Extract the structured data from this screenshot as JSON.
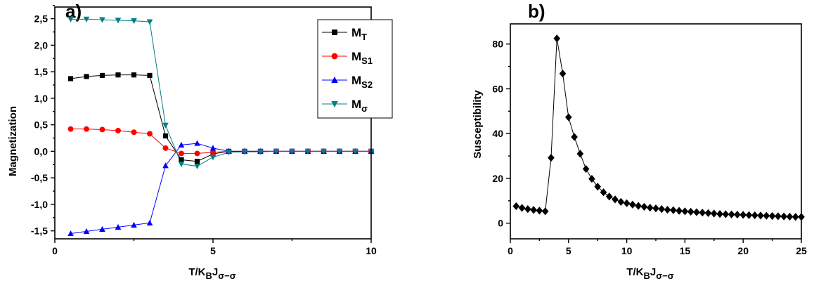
{
  "chart_data": [
    {
      "panel_label": "a)",
      "type": "line",
      "xlabel": {
        "main": "T/K",
        "sub1": "B",
        "mid": "J",
        "sub2": "σ−σ"
      },
      "ylabel": "Magnetization",
      "xlim": [
        0,
        10
      ],
      "ylim": [
        -1.65,
        2.72
      ],
      "x_ticks": [
        "0",
        "5",
        "10"
      ],
      "y_ticks": [
        "-1,5",
        "-1,0",
        "-0,5",
        "0,0",
        "0,5",
        "1,0",
        "1,5",
        "2,0",
        "2,5"
      ],
      "y_tick_values": [
        -1.5,
        -1.0,
        -0.5,
        0.0,
        0.5,
        1.0,
        1.5,
        2.0,
        2.5
      ],
      "legend_position": "top-right",
      "x": [
        0.5,
        1.0,
        1.5,
        2.0,
        2.5,
        3.0,
        3.5,
        4.0,
        4.5,
        5.0,
        5.5,
        6.0,
        6.5,
        7.0,
        7.5,
        8.0,
        8.5,
        9.0,
        9.5,
        10.0
      ],
      "series": [
        {
          "name": "M",
          "sub": "T",
          "color": "#000000",
          "marker": "square",
          "values": [
            1.37,
            1.41,
            1.43,
            1.44,
            1.44,
            1.43,
            0.29,
            -0.16,
            -0.19,
            -0.05,
            0.0,
            0.0,
            0.0,
            0.0,
            0.0,
            0.0,
            0.0,
            0.0,
            0.0,
            0.0
          ]
        },
        {
          "name": "M",
          "sub": "S1",
          "color": "#ff0000",
          "marker": "circle",
          "values": [
            0.42,
            0.42,
            0.41,
            0.39,
            0.36,
            0.33,
            0.06,
            -0.04,
            -0.04,
            -0.02,
            0.0,
            0.0,
            0.0,
            0.0,
            0.0,
            0.0,
            0.0,
            0.0,
            0.0,
            0.0
          ]
        },
        {
          "name": "M",
          "sub": "S2",
          "color": "#0000ff",
          "marker": "triangle-up",
          "values": [
            -1.55,
            -1.51,
            -1.47,
            -1.43,
            -1.39,
            -1.35,
            -0.27,
            0.12,
            0.15,
            0.06,
            0.0,
            0.0,
            0.0,
            0.0,
            0.0,
            0.0,
            0.0,
            0.0,
            0.0,
            0.0
          ]
        },
        {
          "name": "M",
          "sub": "σ",
          "color": "#008080",
          "marker": "triangle-down",
          "values": [
            2.49,
            2.49,
            2.48,
            2.47,
            2.46,
            2.44,
            0.49,
            -0.24,
            -0.28,
            -0.11,
            -0.02,
            -0.01,
            -0.01,
            0.0,
            0.0,
            0.0,
            0.0,
            0.0,
            0.0,
            0.0
          ]
        }
      ]
    },
    {
      "panel_label": "b)",
      "type": "line",
      "xlabel": {
        "main": "T/K",
        "sub1": "B",
        "mid": "J",
        "sub2": "σ−σ"
      },
      "ylabel": "Susceptibility",
      "xlim": [
        0,
        25
      ],
      "ylim": [
        -7,
        89
      ],
      "x_ticks": [
        "0",
        "5",
        "10",
        "15",
        "20",
        "25"
      ],
      "x_tick_values": [
        0,
        5,
        10,
        15,
        20,
        25
      ],
      "y_ticks": [
        "0",
        "20",
        "40",
        "60",
        "80"
      ],
      "y_tick_values": [
        0,
        20,
        40,
        60,
        80
      ],
      "series": [
        {
          "name": "",
          "color": "#000000",
          "marker": "diamond",
          "x": [
            0.5,
            1.0,
            1.5,
            2.0,
            2.5,
            3.0,
            3.5,
            4.0,
            4.5,
            5.0,
            5.5,
            6.0,
            6.5,
            7.0,
            7.5,
            8.0,
            8.5,
            9.0,
            9.5,
            10.0,
            10.5,
            11.0,
            11.5,
            12.0,
            12.5,
            13.0,
            13.5,
            14.0,
            14.5,
            15.0,
            15.5,
            16.0,
            16.5,
            17.0,
            17.5,
            18.0,
            18.5,
            19.0,
            19.5,
            20.0,
            20.5,
            21.0,
            21.5,
            22.0,
            22.5,
            23.0,
            23.5,
            24.0,
            24.5,
            25.0
          ],
          "values": [
            7.6,
            6.8,
            6.3,
            5.9,
            5.6,
            5.3,
            29.2,
            82.5,
            66.8,
            47.3,
            38.5,
            31.0,
            24.2,
            19.8,
            16.3,
            13.8,
            11.9,
            10.6,
            9.5,
            8.9,
            8.3,
            7.7,
            7.3,
            6.9,
            6.6,
            6.3,
            6.0,
            5.8,
            5.5,
            5.3,
            5.1,
            4.9,
            4.7,
            4.5,
            4.3,
            4.1,
            4.0,
            3.9,
            3.8,
            3.7,
            3.6,
            3.5,
            3.4,
            3.3,
            3.2,
            3.1,
            3.0,
            2.9,
            2.8,
            2.8
          ]
        }
      ]
    }
  ]
}
